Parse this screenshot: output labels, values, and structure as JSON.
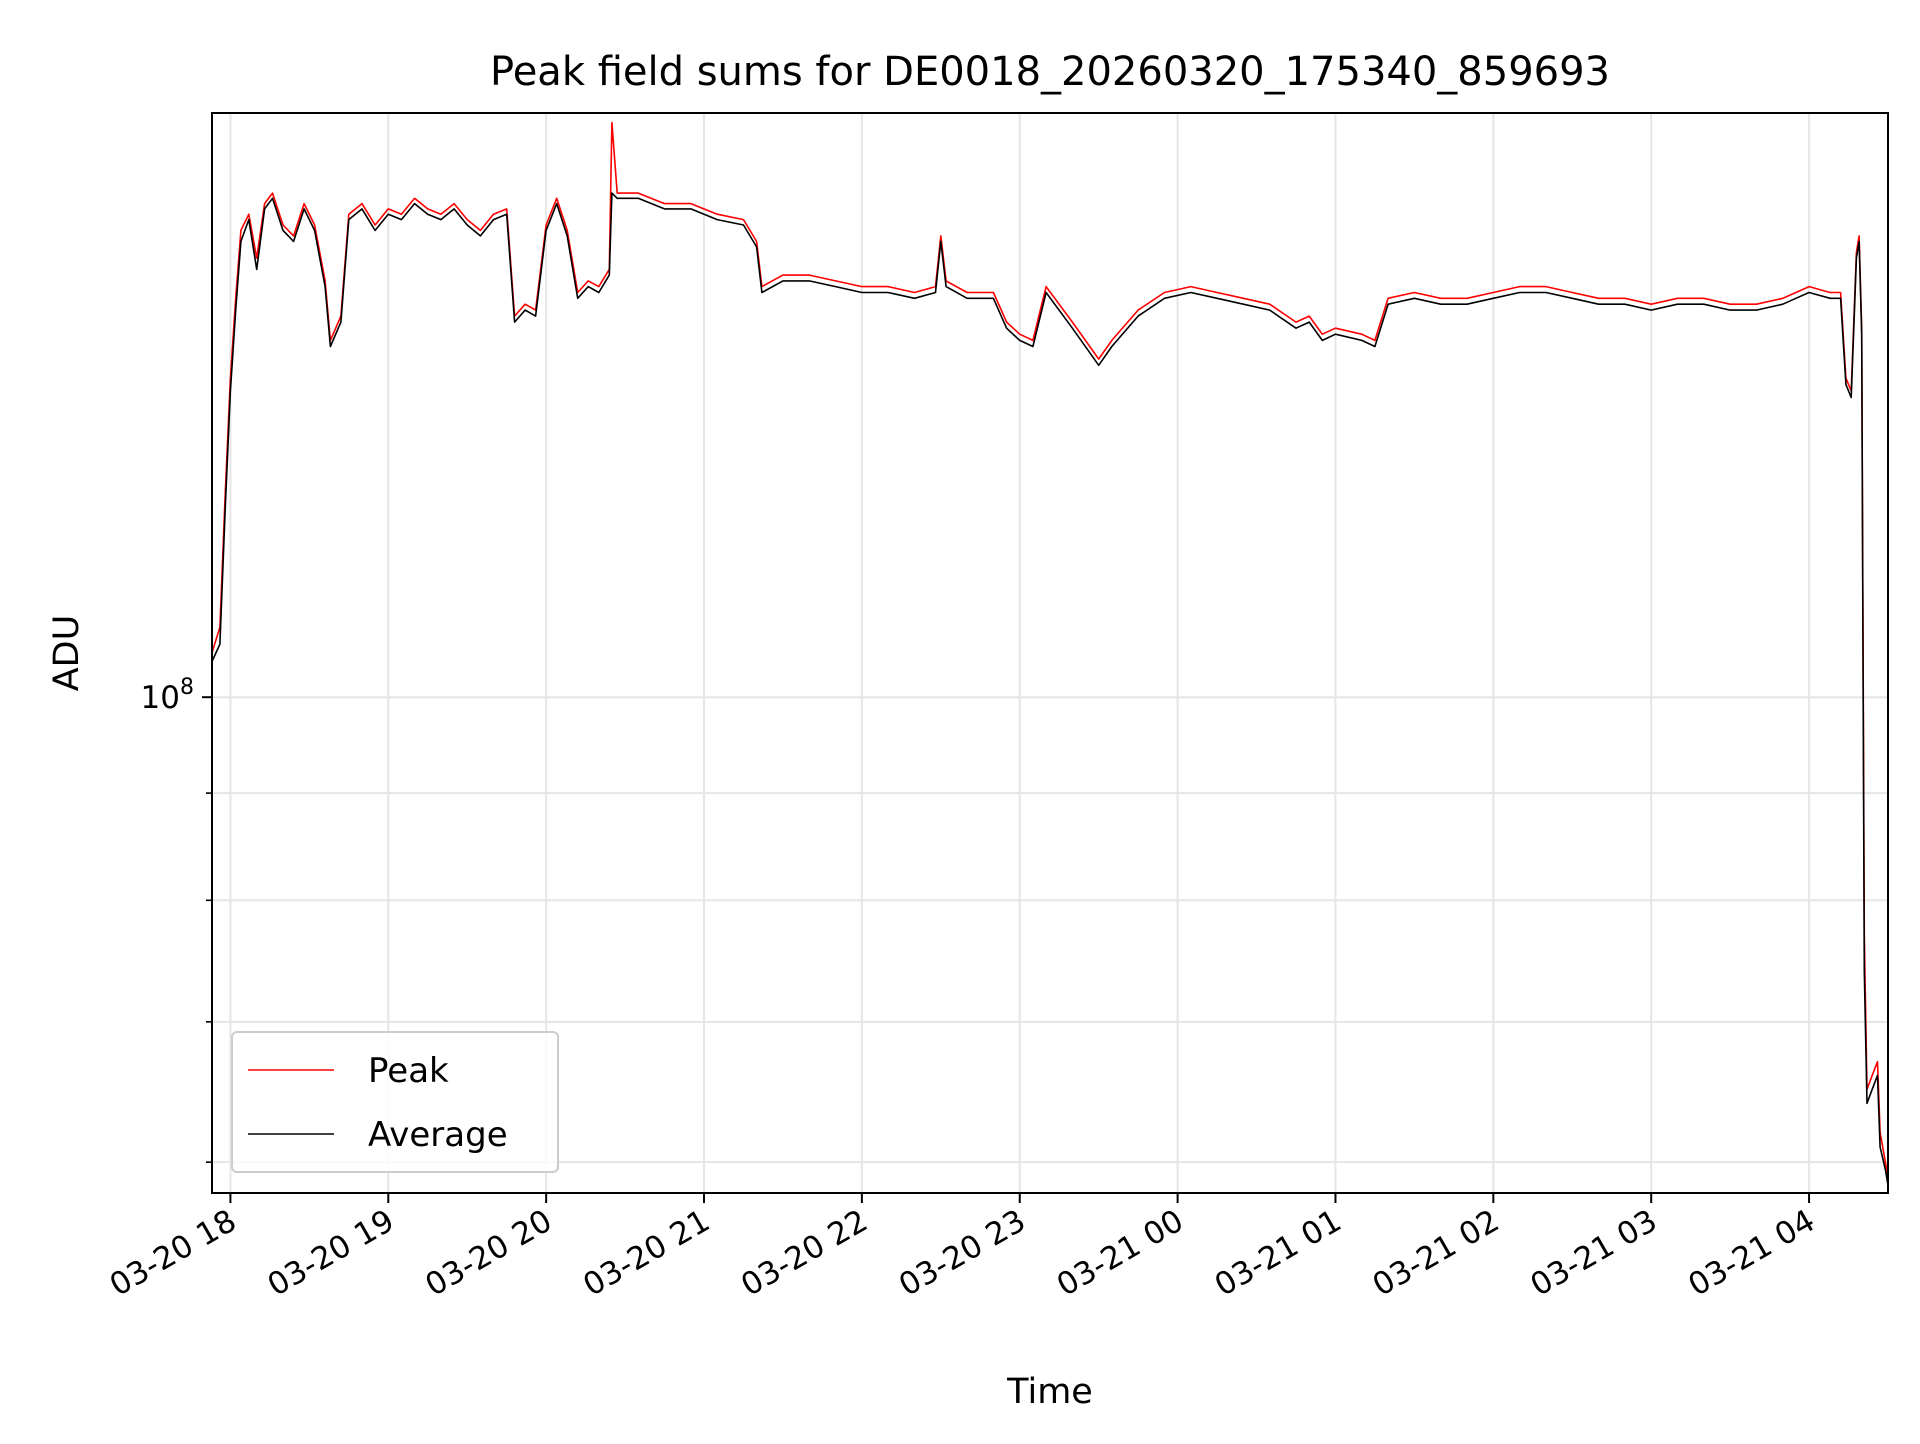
{
  "chart_data": {
    "type": "line",
    "title": "Peak field sums for DE0018_20260320_175340_859693",
    "xlabel": "Time",
    "ylabel": "ADU",
    "yscale": "log",
    "grid": true,
    "legend_position": "lower-left",
    "xlim": [
      "2026-03-20 17:53",
      "2026-03-21 04:30"
    ],
    "ylim": [
      58000000,
      190000000
    ],
    "x_ticks": [
      {
        "time": "2026-03-20 18:00",
        "label": "03-20 18"
      },
      {
        "time": "2026-03-20 19:00",
        "label": "03-20 19"
      },
      {
        "time": "2026-03-20 20:00",
        "label": "03-20 20"
      },
      {
        "time": "2026-03-20 21:00",
        "label": "03-20 21"
      },
      {
        "time": "2026-03-20 22:00",
        "label": "03-20 22"
      },
      {
        "time": "2026-03-20 23:00",
        "label": "03-20 23"
      },
      {
        "time": "2026-03-21 00:00",
        "label": "03-21 00"
      },
      {
        "time": "2026-03-21 01:00",
        "label": "03-21 01"
      },
      {
        "time": "2026-03-21 02:00",
        "label": "03-21 02"
      },
      {
        "time": "2026-03-21 03:00",
        "label": "03-21 03"
      },
      {
        "time": "2026-03-21 04:00",
        "label": "03-21 04"
      }
    ],
    "y_major_ticks": [
      {
        "value": 100000000,
        "label_base": "10",
        "label_exp": "8"
      }
    ],
    "y_minor_ticks": [
      60000000,
      70000000,
      80000000,
      90000000
    ],
    "series": [
      {
        "name": "Peak",
        "color": "#ff0000",
        "points": [
          [
            "2026-03-20 17:53",
            105000000
          ],
          [
            "2026-03-20 17:56",
            108000000
          ],
          [
            "2026-03-20 17:58",
            125000000
          ],
          [
            "2026-03-20 18:00",
            142000000
          ],
          [
            "2026-03-20 18:02",
            155000000
          ],
          [
            "2026-03-20 18:04",
            167000000
          ],
          [
            "2026-03-20 18:07",
            170000000
          ],
          [
            "2026-03-20 18:10",
            162000000
          ],
          [
            "2026-03-20 18:13",
            172000000
          ],
          [
            "2026-03-20 18:16",
            174000000
          ],
          [
            "2026-03-20 18:20",
            168000000
          ],
          [
            "2026-03-20 18:24",
            166000000
          ],
          [
            "2026-03-20 18:28",
            172000000
          ],
          [
            "2026-03-20 18:32",
            168000000
          ],
          [
            "2026-03-20 18:36",
            158000000
          ],
          [
            "2026-03-20 18:38",
            148000000
          ],
          [
            "2026-03-20 18:42",
            152000000
          ],
          [
            "2026-03-20 18:45",
            170000000
          ],
          [
            "2026-03-20 18:50",
            172000000
          ],
          [
            "2026-03-20 18:55",
            168000000
          ],
          [
            "2026-03-20 19:00",
            171000000
          ],
          [
            "2026-03-20 19:05",
            170000000
          ],
          [
            "2026-03-20 19:10",
            173000000
          ],
          [
            "2026-03-20 19:15",
            171000000
          ],
          [
            "2026-03-20 19:20",
            170000000
          ],
          [
            "2026-03-20 19:25",
            172000000
          ],
          [
            "2026-03-20 19:30",
            169000000
          ],
          [
            "2026-03-20 19:35",
            167000000
          ],
          [
            "2026-03-20 19:40",
            170000000
          ],
          [
            "2026-03-20 19:45",
            171000000
          ],
          [
            "2026-03-20 19:48",
            152000000
          ],
          [
            "2026-03-20 19:52",
            154000000
          ],
          [
            "2026-03-20 19:56",
            153000000
          ],
          [
            "2026-03-20 20:00",
            168000000
          ],
          [
            "2026-03-20 20:04",
            173000000
          ],
          [
            "2026-03-20 20:08",
            167000000
          ],
          [
            "2026-03-20 20:12",
            156000000
          ],
          [
            "2026-03-20 20:16",
            158000000
          ],
          [
            "2026-03-20 20:20",
            157000000
          ],
          [
            "2026-03-20 20:24",
            160000000
          ],
          [
            "2026-03-20 20:25",
            188000000
          ],
          [
            "2026-03-20 20:27",
            174000000
          ],
          [
            "2026-03-20 20:35",
            174000000
          ],
          [
            "2026-03-20 20:45",
            172000000
          ],
          [
            "2026-03-20 20:55",
            172000000
          ],
          [
            "2026-03-20 21:05",
            170000000
          ],
          [
            "2026-03-20 21:15",
            169000000
          ],
          [
            "2026-03-20 21:20",
            165000000
          ],
          [
            "2026-03-20 21:22",
            157000000
          ],
          [
            "2026-03-20 21:30",
            159000000
          ],
          [
            "2026-03-20 21:40",
            159000000
          ],
          [
            "2026-03-20 21:50",
            158000000
          ],
          [
            "2026-03-20 22:00",
            157000000
          ],
          [
            "2026-03-20 22:10",
            157000000
          ],
          [
            "2026-03-20 22:20",
            156000000
          ],
          [
            "2026-03-20 22:28",
            157000000
          ],
          [
            "2026-03-20 22:30",
            166000000
          ],
          [
            "2026-03-20 22:32",
            158000000
          ],
          [
            "2026-03-20 22:40",
            156000000
          ],
          [
            "2026-03-20 22:50",
            156000000
          ],
          [
            "2026-03-20 22:55",
            151000000
          ],
          [
            "2026-03-20 23:00",
            149000000
          ],
          [
            "2026-03-20 23:05",
            148000000
          ],
          [
            "2026-03-20 23:10",
            157000000
          ],
          [
            "2026-03-20 23:20",
            151000000
          ],
          [
            "2026-03-20 23:30",
            145000000
          ],
          [
            "2026-03-20 23:35",
            148000000
          ],
          [
            "2026-03-20 23:45",
            153000000
          ],
          [
            "2026-03-20 23:55",
            156000000
          ],
          [
            "2026-03-21 00:05",
            157000000
          ],
          [
            "2026-03-21 00:15",
            156000000
          ],
          [
            "2026-03-21 00:25",
            155000000
          ],
          [
            "2026-03-21 00:35",
            154000000
          ],
          [
            "2026-03-21 00:45",
            151000000
          ],
          [
            "2026-03-21 00:50",
            152000000
          ],
          [
            "2026-03-21 00:55",
            149000000
          ],
          [
            "2026-03-21 01:00",
            150000000
          ],
          [
            "2026-03-21 01:10",
            149000000
          ],
          [
            "2026-03-21 01:15",
            148000000
          ],
          [
            "2026-03-21 01:20",
            155000000
          ],
          [
            "2026-03-21 01:30",
            156000000
          ],
          [
            "2026-03-21 01:40",
            155000000
          ],
          [
            "2026-03-21 01:50",
            155000000
          ],
          [
            "2026-03-21 02:00",
            156000000
          ],
          [
            "2026-03-21 02:10",
            157000000
          ],
          [
            "2026-03-21 02:20",
            157000000
          ],
          [
            "2026-03-21 02:30",
            156000000
          ],
          [
            "2026-03-21 02:40",
            155000000
          ],
          [
            "2026-03-21 02:50",
            155000000
          ],
          [
            "2026-03-21 03:00",
            154000000
          ],
          [
            "2026-03-21 03:10",
            155000000
          ],
          [
            "2026-03-21 03:20",
            155000000
          ],
          [
            "2026-03-21 03:30",
            154000000
          ],
          [
            "2026-03-21 03:40",
            154000000
          ],
          [
            "2026-03-21 03:50",
            155000000
          ],
          [
            "2026-03-21 03:55",
            156000000
          ],
          [
            "2026-03-21 04:00",
            157000000
          ],
          [
            "2026-03-21 04:08",
            156000000
          ],
          [
            "2026-03-21 04:12",
            156000000
          ],
          [
            "2026-03-21 04:14",
            142000000
          ],
          [
            "2026-03-21 04:16",
            140000000
          ],
          [
            "2026-03-21 04:18",
            163000000
          ],
          [
            "2026-03-21 04:19",
            166000000
          ],
          [
            "2026-03-21 04:20",
            150000000
          ],
          [
            "2026-03-21 04:21",
            77000000
          ],
          [
            "2026-03-21 04:22",
            65000000
          ],
          [
            "2026-03-21 04:24",
            66000000
          ],
          [
            "2026-03-21 04:26",
            67000000
          ],
          [
            "2026-03-21 04:27",
            62000000
          ],
          [
            "2026-03-21 04:29",
            60000000
          ],
          [
            "2026-03-21 04:30",
            59000000
          ]
        ]
      },
      {
        "name": "Average",
        "color": "#000000",
        "points": [
          [
            "2026-03-20 17:53",
            104000000
          ],
          [
            "2026-03-20 17:56",
            106000000
          ],
          [
            "2026-03-20 17:58",
            123000000
          ],
          [
            "2026-03-20 18:00",
            140000000
          ],
          [
            "2026-03-20 18:02",
            153000000
          ],
          [
            "2026-03-20 18:04",
            165000000
          ],
          [
            "2026-03-20 18:07",
            169000000
          ],
          [
            "2026-03-20 18:10",
            160000000
          ],
          [
            "2026-03-20 18:13",
            171000000
          ],
          [
            "2026-03-20 18:16",
            173000000
          ],
          [
            "2026-03-20 18:20",
            167000000
          ],
          [
            "2026-03-20 18:24",
            165000000
          ],
          [
            "2026-03-20 18:28",
            171000000
          ],
          [
            "2026-03-20 18:32",
            167000000
          ],
          [
            "2026-03-20 18:36",
            157000000
          ],
          [
            "2026-03-20 18:38",
            147000000
          ],
          [
            "2026-03-20 18:42",
            151000000
          ],
          [
            "2026-03-20 18:45",
            169000000
          ],
          [
            "2026-03-20 18:50",
            171000000
          ],
          [
            "2026-03-20 18:55",
            167000000
          ],
          [
            "2026-03-20 19:00",
            170000000
          ],
          [
            "2026-03-20 19:05",
            169000000
          ],
          [
            "2026-03-20 19:10",
            172000000
          ],
          [
            "2026-03-20 19:15",
            170000000
          ],
          [
            "2026-03-20 19:20",
            169000000
          ],
          [
            "2026-03-20 19:25",
            171000000
          ],
          [
            "2026-03-20 19:30",
            168000000
          ],
          [
            "2026-03-20 19:35",
            166000000
          ],
          [
            "2026-03-20 19:40",
            169000000
          ],
          [
            "2026-03-20 19:45",
            170000000
          ],
          [
            "2026-03-20 19:48",
            151000000
          ],
          [
            "2026-03-20 19:52",
            153000000
          ],
          [
            "2026-03-20 19:56",
            152000000
          ],
          [
            "2026-03-20 20:00",
            167000000
          ],
          [
            "2026-03-20 20:04",
            172000000
          ],
          [
            "2026-03-20 20:08",
            166000000
          ],
          [
            "2026-03-20 20:12",
            155000000
          ],
          [
            "2026-03-20 20:16",
            157000000
          ],
          [
            "2026-03-20 20:20",
            156000000
          ],
          [
            "2026-03-20 20:24",
            159000000
          ],
          [
            "2026-03-20 20:25",
            174000000
          ],
          [
            "2026-03-20 20:27",
            173000000
          ],
          [
            "2026-03-20 20:35",
            173000000
          ],
          [
            "2026-03-20 20:45",
            171000000
          ],
          [
            "2026-03-20 20:55",
            171000000
          ],
          [
            "2026-03-20 21:05",
            169000000
          ],
          [
            "2026-03-20 21:15",
            168000000
          ],
          [
            "2026-03-20 21:20",
            164000000
          ],
          [
            "2026-03-20 21:22",
            156000000
          ],
          [
            "2026-03-20 21:30",
            158000000
          ],
          [
            "2026-03-20 21:40",
            158000000
          ],
          [
            "2026-03-20 21:50",
            157000000
          ],
          [
            "2026-03-20 22:00",
            156000000
          ],
          [
            "2026-03-20 22:10",
            156000000
          ],
          [
            "2026-03-20 22:20",
            155000000
          ],
          [
            "2026-03-20 22:28",
            156000000
          ],
          [
            "2026-03-20 22:30",
            165000000
          ],
          [
            "2026-03-20 22:32",
            157000000
          ],
          [
            "2026-03-20 22:40",
            155000000
          ],
          [
            "2026-03-20 22:50",
            155000000
          ],
          [
            "2026-03-20 22:55",
            150000000
          ],
          [
            "2026-03-20 23:00",
            148000000
          ],
          [
            "2026-03-20 23:05",
            147000000
          ],
          [
            "2026-03-20 23:10",
            156000000
          ],
          [
            "2026-03-20 23:20",
            150000000
          ],
          [
            "2026-03-20 23:30",
            144000000
          ],
          [
            "2026-03-20 23:35",
            147000000
          ],
          [
            "2026-03-20 23:45",
            152000000
          ],
          [
            "2026-03-20 23:55",
            155000000
          ],
          [
            "2026-03-21 00:05",
            156000000
          ],
          [
            "2026-03-21 00:15",
            155000000
          ],
          [
            "2026-03-21 00:25",
            154000000
          ],
          [
            "2026-03-21 00:35",
            153000000
          ],
          [
            "2026-03-21 00:45",
            150000000
          ],
          [
            "2026-03-21 00:50",
            151000000
          ],
          [
            "2026-03-21 00:55",
            148000000
          ],
          [
            "2026-03-21 01:00",
            149000000
          ],
          [
            "2026-03-21 01:10",
            148000000
          ],
          [
            "2026-03-21 01:15",
            147000000
          ],
          [
            "2026-03-21 01:20",
            154000000
          ],
          [
            "2026-03-21 01:30",
            155000000
          ],
          [
            "2026-03-21 01:40",
            154000000
          ],
          [
            "2026-03-21 01:50",
            154000000
          ],
          [
            "2026-03-21 02:00",
            155000000
          ],
          [
            "2026-03-21 02:10",
            156000000
          ],
          [
            "2026-03-21 02:20",
            156000000
          ],
          [
            "2026-03-21 02:30",
            155000000
          ],
          [
            "2026-03-21 02:40",
            154000000
          ],
          [
            "2026-03-21 02:50",
            154000000
          ],
          [
            "2026-03-21 03:00",
            153000000
          ],
          [
            "2026-03-21 03:10",
            154000000
          ],
          [
            "2026-03-21 03:20",
            154000000
          ],
          [
            "2026-03-21 03:30",
            153000000
          ],
          [
            "2026-03-21 03:40",
            153000000
          ],
          [
            "2026-03-21 03:50",
            154000000
          ],
          [
            "2026-03-21 03:55",
            155000000
          ],
          [
            "2026-03-21 04:00",
            156000000
          ],
          [
            "2026-03-21 04:08",
            155000000
          ],
          [
            "2026-03-21 04:12",
            155000000
          ],
          [
            "2026-03-21 04:14",
            141000000
          ],
          [
            "2026-03-21 04:16",
            139000000
          ],
          [
            "2026-03-21 04:18",
            162000000
          ],
          [
            "2026-03-21 04:19",
            165000000
          ],
          [
            "2026-03-21 04:20",
            149000000
          ],
          [
            "2026-03-21 04:21",
            74000000
          ],
          [
            "2026-03-21 04:22",
            64000000
          ],
          [
            "2026-03-21 04:24",
            65000000
          ],
          [
            "2026-03-21 04:26",
            66000000
          ],
          [
            "2026-03-21 04:27",
            61000000
          ],
          [
            "2026-03-21 04:29",
            59500000
          ],
          [
            "2026-03-21 04:30",
            58500000
          ]
        ]
      }
    ]
  }
}
